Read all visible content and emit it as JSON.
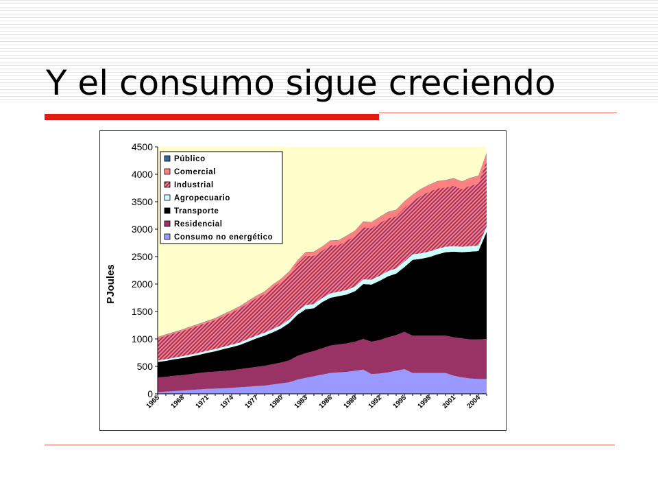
{
  "slide": {
    "title": "Y el consumo sigue creciendo"
  },
  "colors": {
    "title_rule": "#e01b12",
    "plot_background": "#ffffcc"
  },
  "chart_data": {
    "type": "area",
    "stacked": true,
    "title": "",
    "xlabel": "",
    "ylabel": "PJoules",
    "ylim": [
      0,
      4500
    ],
    "yticks": [
      0,
      500,
      1000,
      1500,
      2000,
      2500,
      3000,
      3500,
      4000,
      4500
    ],
    "xlim": [
      1965,
      2005
    ],
    "xtick_labels": [
      "1965",
      "1968",
      "1971",
      "1974",
      "1977",
      "1980",
      "1983",
      "1986",
      "1989",
      "1992",
      "1995",
      "1998",
      "2001",
      "2004"
    ],
    "legend_position": "top-left",
    "legend_order": [
      "Público",
      "Comercial",
      "Industrial",
      "Agropecuario",
      "Transporte",
      "Residencial",
      "Consumo no energético"
    ],
    "x": [
      1965,
      1966,
      1967,
      1968,
      1969,
      1970,
      1971,
      1972,
      1973,
      1974,
      1975,
      1976,
      1977,
      1978,
      1979,
      1980,
      1981,
      1982,
      1983,
      1984,
      1985,
      1986,
      1987,
      1988,
      1989,
      1990,
      1991,
      1992,
      1993,
      1994,
      1995,
      1996,
      1997,
      1998,
      1999,
      2000,
      2001,
      2002,
      2003,
      2004,
      2005
    ],
    "series": [
      {
        "name": "Consumo no energético",
        "color": "#9999ff",
        "pattern": "solid",
        "values": [
          30,
          40,
          50,
          60,
          70,
          80,
          90,
          95,
          100,
          110,
          120,
          130,
          140,
          150,
          170,
          190,
          210,
          260,
          290,
          320,
          350,
          380,
          390,
          400,
          420,
          440,
          360,
          370,
          390,
          420,
          450,
          380,
          380,
          380,
          380,
          380,
          330,
          300,
          280,
          270,
          270
        ]
      },
      {
        "name": "Residencial",
        "color": "#993366",
        "pattern": "solid",
        "values": [
          270,
          270,
          280,
          280,
          290,
          300,
          305,
          310,
          315,
          320,
          330,
          340,
          350,
          360,
          370,
          380,
          400,
          430,
          450,
          460,
          480,
          500,
          510,
          520,
          530,
          560,
          590,
          610,
          640,
          650,
          680,
          680,
          680,
          680,
          680,
          680,
          700,
          710,
          710,
          720,
          730
        ]
      },
      {
        "name": "Transporte",
        "color": "#000000",
        "pattern": "solid",
        "values": [
          280,
          290,
          300,
          310,
          320,
          330,
          350,
          370,
          400,
          420,
          440,
          480,
          520,
          550,
          580,
          620,
          680,
          750,
          800,
          780,
          840,
          870,
          880,
          890,
          920,
          1000,
          1040,
          1080,
          1110,
          1120,
          1180,
          1380,
          1400,
          1430,
          1480,
          1520,
          1560,
          1570,
          1600,
          1610,
          1950
        ]
      },
      {
        "name": "Agropecuario",
        "color": "#ccffff",
        "pattern": "solid",
        "values": [
          30,
          30,
          30,
          35,
          35,
          35,
          40,
          40,
          40,
          45,
          45,
          50,
          50,
          55,
          60,
          60,
          65,
          70,
          75,
          75,
          75,
          80,
          80,
          80,
          85,
          85,
          90,
          90,
          95,
          95,
          100,
          100,
          100,
          100,
          100,
          100,
          100,
          100,
          100,
          100,
          100
        ]
      },
      {
        "name": "Industrial",
        "color": "#ff8080",
        "pattern": "hatch",
        "hatch_color": "#993366",
        "values": [
          400,
          430,
          440,
          460,
          480,
          500,
          510,
          530,
          560,
          590,
          620,
          650,
          680,
          700,
          760,
          790,
          820,
          860,
          900,
          880,
          860,
          880,
          850,
          900,
          920,
          950,
          940,
          960,
          960,
          950,
          980,
          970,
          1050,
          1090,
          1100,
          1080,
          1100,
          1050,
          1100,
          1130,
          1200
        ]
      },
      {
        "name": "Comercial",
        "color": "#ff8080",
        "pattern": "solid",
        "values": [
          20,
          20,
          22,
          24,
          25,
          26,
          28,
          30,
          32,
          34,
          36,
          40,
          42,
          45,
          48,
          50,
          55,
          60,
          65,
          70,
          75,
          80,
          85,
          90,
          95,
          100,
          105,
          110,
          115,
          115,
          115,
          115,
          120,
          125,
          130,
          130,
          135,
          135,
          140,
          140,
          140
        ]
      },
      {
        "name": "Público",
        "color": "#336699",
        "pattern": "solid",
        "values": [
          5,
          5,
          5,
          5,
          5,
          5,
          5,
          5,
          5,
          5,
          5,
          5,
          5,
          5,
          5,
          5,
          5,
          5,
          5,
          5,
          5,
          5,
          5,
          5,
          5,
          5,
          5,
          5,
          5,
          5,
          5,
          5,
          5,
          5,
          5,
          5,
          5,
          5,
          5,
          5,
          5
        ]
      }
    ]
  }
}
